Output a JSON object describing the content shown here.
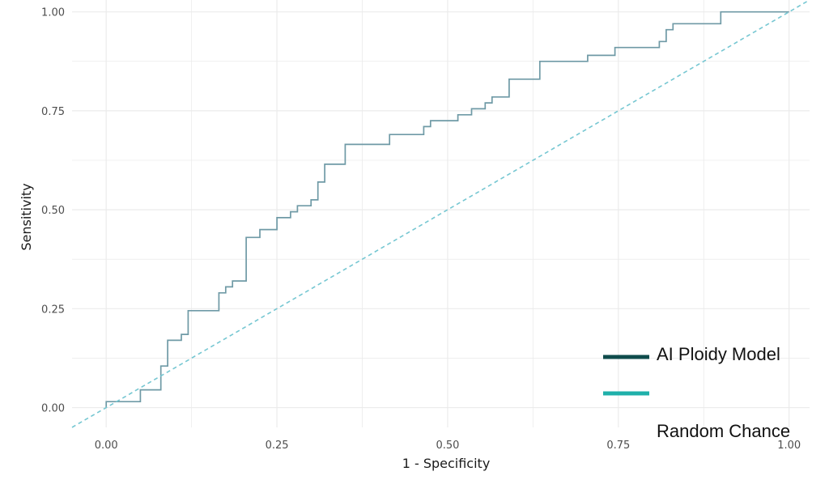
{
  "chart_data": {
    "type": "line",
    "xlabel": "1 - Specificity",
    "ylabel": "Sensitivity",
    "xlim": [
      -0.05,
      1.03
    ],
    "ylim": [
      -0.05,
      1.03
    ],
    "x_ticks": [
      0,
      0.25,
      0.5,
      0.75,
      1
    ],
    "x_tick_labels": [
      "0.00",
      "0.25",
      "0.50",
      "0.75",
      "1.00"
    ],
    "y_ticks": [
      0,
      0.25,
      0.5,
      0.75,
      1
    ],
    "y_tick_labels": [
      "0.00",
      "0.25",
      "0.50",
      "0.75",
      "1.00"
    ],
    "grid": true,
    "legend": {
      "position": "bottom-right",
      "entries": [
        "AI Ploidy Model",
        "",
        "Random Chance"
      ]
    },
    "series": [
      {
        "name": "AI Ploidy Model",
        "style": "step",
        "color": "#6f9aa6",
        "x": [
          0,
          0,
          0.05,
          0.05,
          0.08,
          0.08,
          0.09,
          0.09,
          0.11,
          0.11,
          0.12,
          0.12,
          0.165,
          0.165,
          0.175,
          0.175,
          0.185,
          0.185,
          0.205,
          0.205,
          0.225,
          0.225,
          0.25,
          0.25,
          0.27,
          0.27,
          0.28,
          0.28,
          0.3,
          0.3,
          0.31,
          0.31,
          0.32,
          0.32,
          0.35,
          0.35,
          0.415,
          0.415,
          0.465,
          0.465,
          0.475,
          0.475,
          0.515,
          0.515,
          0.535,
          0.535,
          0.555,
          0.555,
          0.565,
          0.565,
          0.59,
          0.59,
          0.635,
          0.635,
          0.705,
          0.705,
          0.745,
          0.745,
          0.81,
          0.81,
          0.82,
          0.82,
          0.83,
          0.83,
          0.9,
          0.9,
          1
        ],
        "y": [
          0,
          0.015,
          0.015,
          0.045,
          0.045,
          0.105,
          0.105,
          0.17,
          0.17,
          0.185,
          0.185,
          0.245,
          0.245,
          0.29,
          0.29,
          0.305,
          0.305,
          0.32,
          0.32,
          0.43,
          0.43,
          0.45,
          0.45,
          0.48,
          0.48,
          0.495,
          0.495,
          0.51,
          0.51,
          0.525,
          0.525,
          0.57,
          0.57,
          0.615,
          0.615,
          0.665,
          0.665,
          0.69,
          0.69,
          0.71,
          0.71,
          0.725,
          0.725,
          0.74,
          0.74,
          0.755,
          0.755,
          0.77,
          0.77,
          0.785,
          0.785,
          0.83,
          0.83,
          0.875,
          0.875,
          0.89,
          0.89,
          0.91,
          0.91,
          0.925,
          0.925,
          0.955,
          0.955,
          0.97,
          0.97,
          1,
          1
        ]
      },
      {
        "name": "Random Chance",
        "style": "dashed",
        "color": "#76c7d2",
        "x": [
          -0.05,
          1.03
        ],
        "y": [
          -0.05,
          1.03
        ]
      }
    ]
  },
  "legend_colors": {
    "model": "#0f4c4c",
    "chance": "#1fb0aa"
  },
  "grid_color": "#ebebeb"
}
